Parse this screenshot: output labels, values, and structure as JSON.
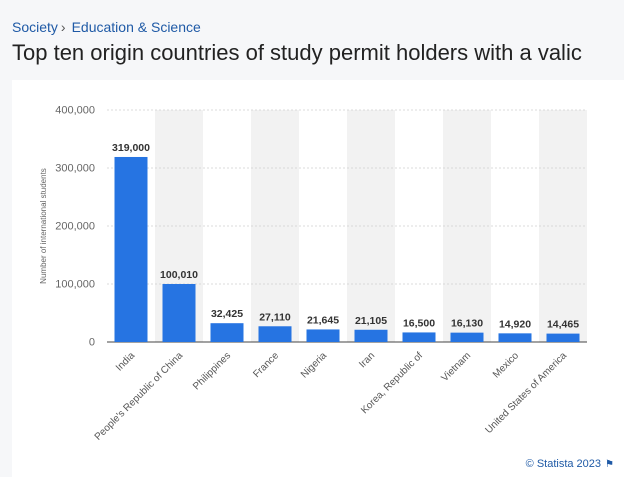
{
  "breadcrumb": {
    "items": [
      "Society",
      "Education & Science"
    ],
    "separator": "›"
  },
  "title": "Top ten origin countries of study permit holders with a valic",
  "credit": "© Statista 2023",
  "icons": {
    "credit_icon": "flag-icon"
  },
  "colors": {
    "bar": "#2674e2",
    "band": "#f2f2f2",
    "link": "#1f5aa6"
  },
  "chart_data": {
    "type": "bar",
    "ylabel": "Number of international students",
    "ylim": [
      0,
      400000
    ],
    "yticks": [
      0,
      100000,
      200000,
      300000,
      400000
    ],
    "ytick_labels": [
      "0",
      "100,000",
      "200,000",
      "300,000",
      "400,000"
    ],
    "categories": [
      "India",
      "People's Republic of China",
      "Philippines",
      "France",
      "Nigeria",
      "Iran",
      "Korea, Republic of",
      "Vietnam",
      "Mexico",
      "United States of America"
    ],
    "values": [
      319000,
      100010,
      32425,
      27110,
      21645,
      21105,
      16500,
      16130,
      14920,
      14465
    ],
    "value_labels": [
      "319,000",
      "100,010",
      "32,425",
      "27,110",
      "21,645",
      "21,105",
      "16,500",
      "16,130",
      "14,920",
      "14,465"
    ],
    "grid": true,
    "alternating_bands": true
  }
}
